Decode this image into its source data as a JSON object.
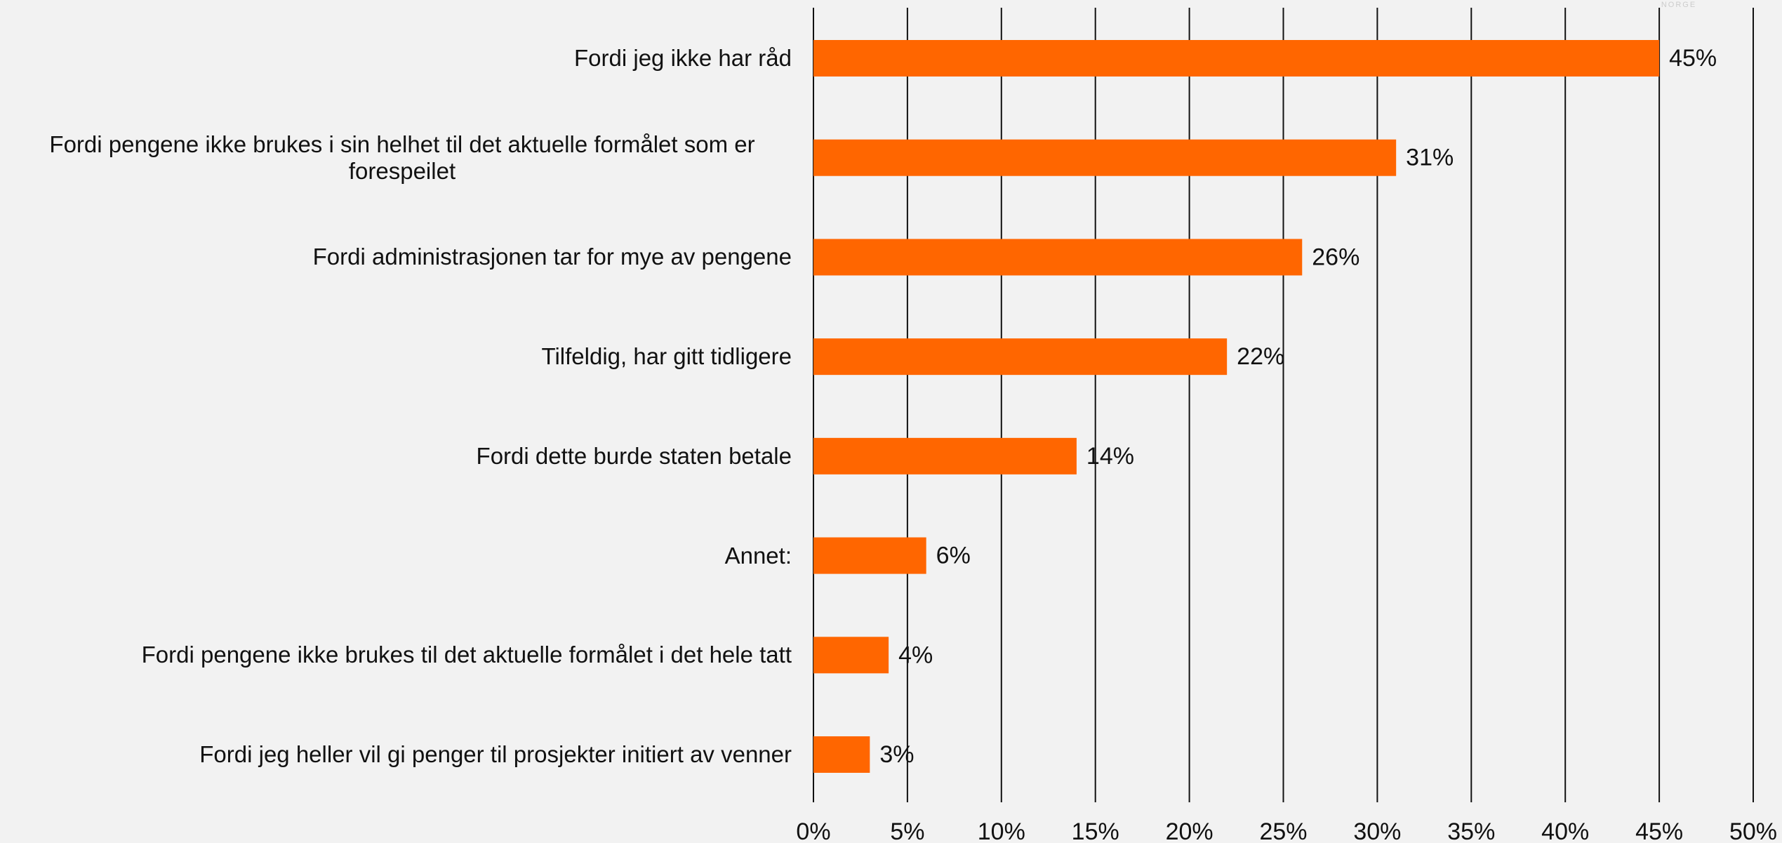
{
  "brand": "NORGE",
  "chart_data": {
    "type": "barh",
    "categories": [
      "Fordi jeg ikke har råd",
      "Fordi pengene ikke brukes i sin helhet til det aktuelle formålet som er forespeilet",
      "Fordi administrasjonen tar for mye av pengene",
      "Tilfeldig, har gitt tidligere",
      "Fordi dette burde staten betale",
      "Annet:",
      "Fordi pengene ikke brukes til det aktuelle formålet i det hele tatt",
      "Fordi jeg heller vil gi penger til prosjekter initiert av venner"
    ],
    "values": [
      45,
      31,
      26,
      22,
      14,
      6,
      4,
      3
    ],
    "value_labels": [
      "45%",
      "31%",
      "26%",
      "22%",
      "14%",
      "6%",
      "4%",
      "3%"
    ],
    "color": "#ff6600",
    "xlim": [
      0,
      50
    ],
    "xticks": [
      {
        "value": 0,
        "label": "0%"
      },
      {
        "value": 5,
        "label": "5%"
      },
      {
        "value": 10,
        "label": "10%"
      },
      {
        "value": 15,
        "label": "15%"
      },
      {
        "value": 20,
        "label": "20%"
      },
      {
        "value": 25,
        "label": "25%"
      },
      {
        "value": 30,
        "label": "30%"
      },
      {
        "value": 35,
        "label": "35%"
      },
      {
        "value": 40,
        "label": "40%"
      },
      {
        "value": 45,
        "label": "45%"
      },
      {
        "value": 50,
        "label": "50%"
      }
    ],
    "grid": true
  }
}
